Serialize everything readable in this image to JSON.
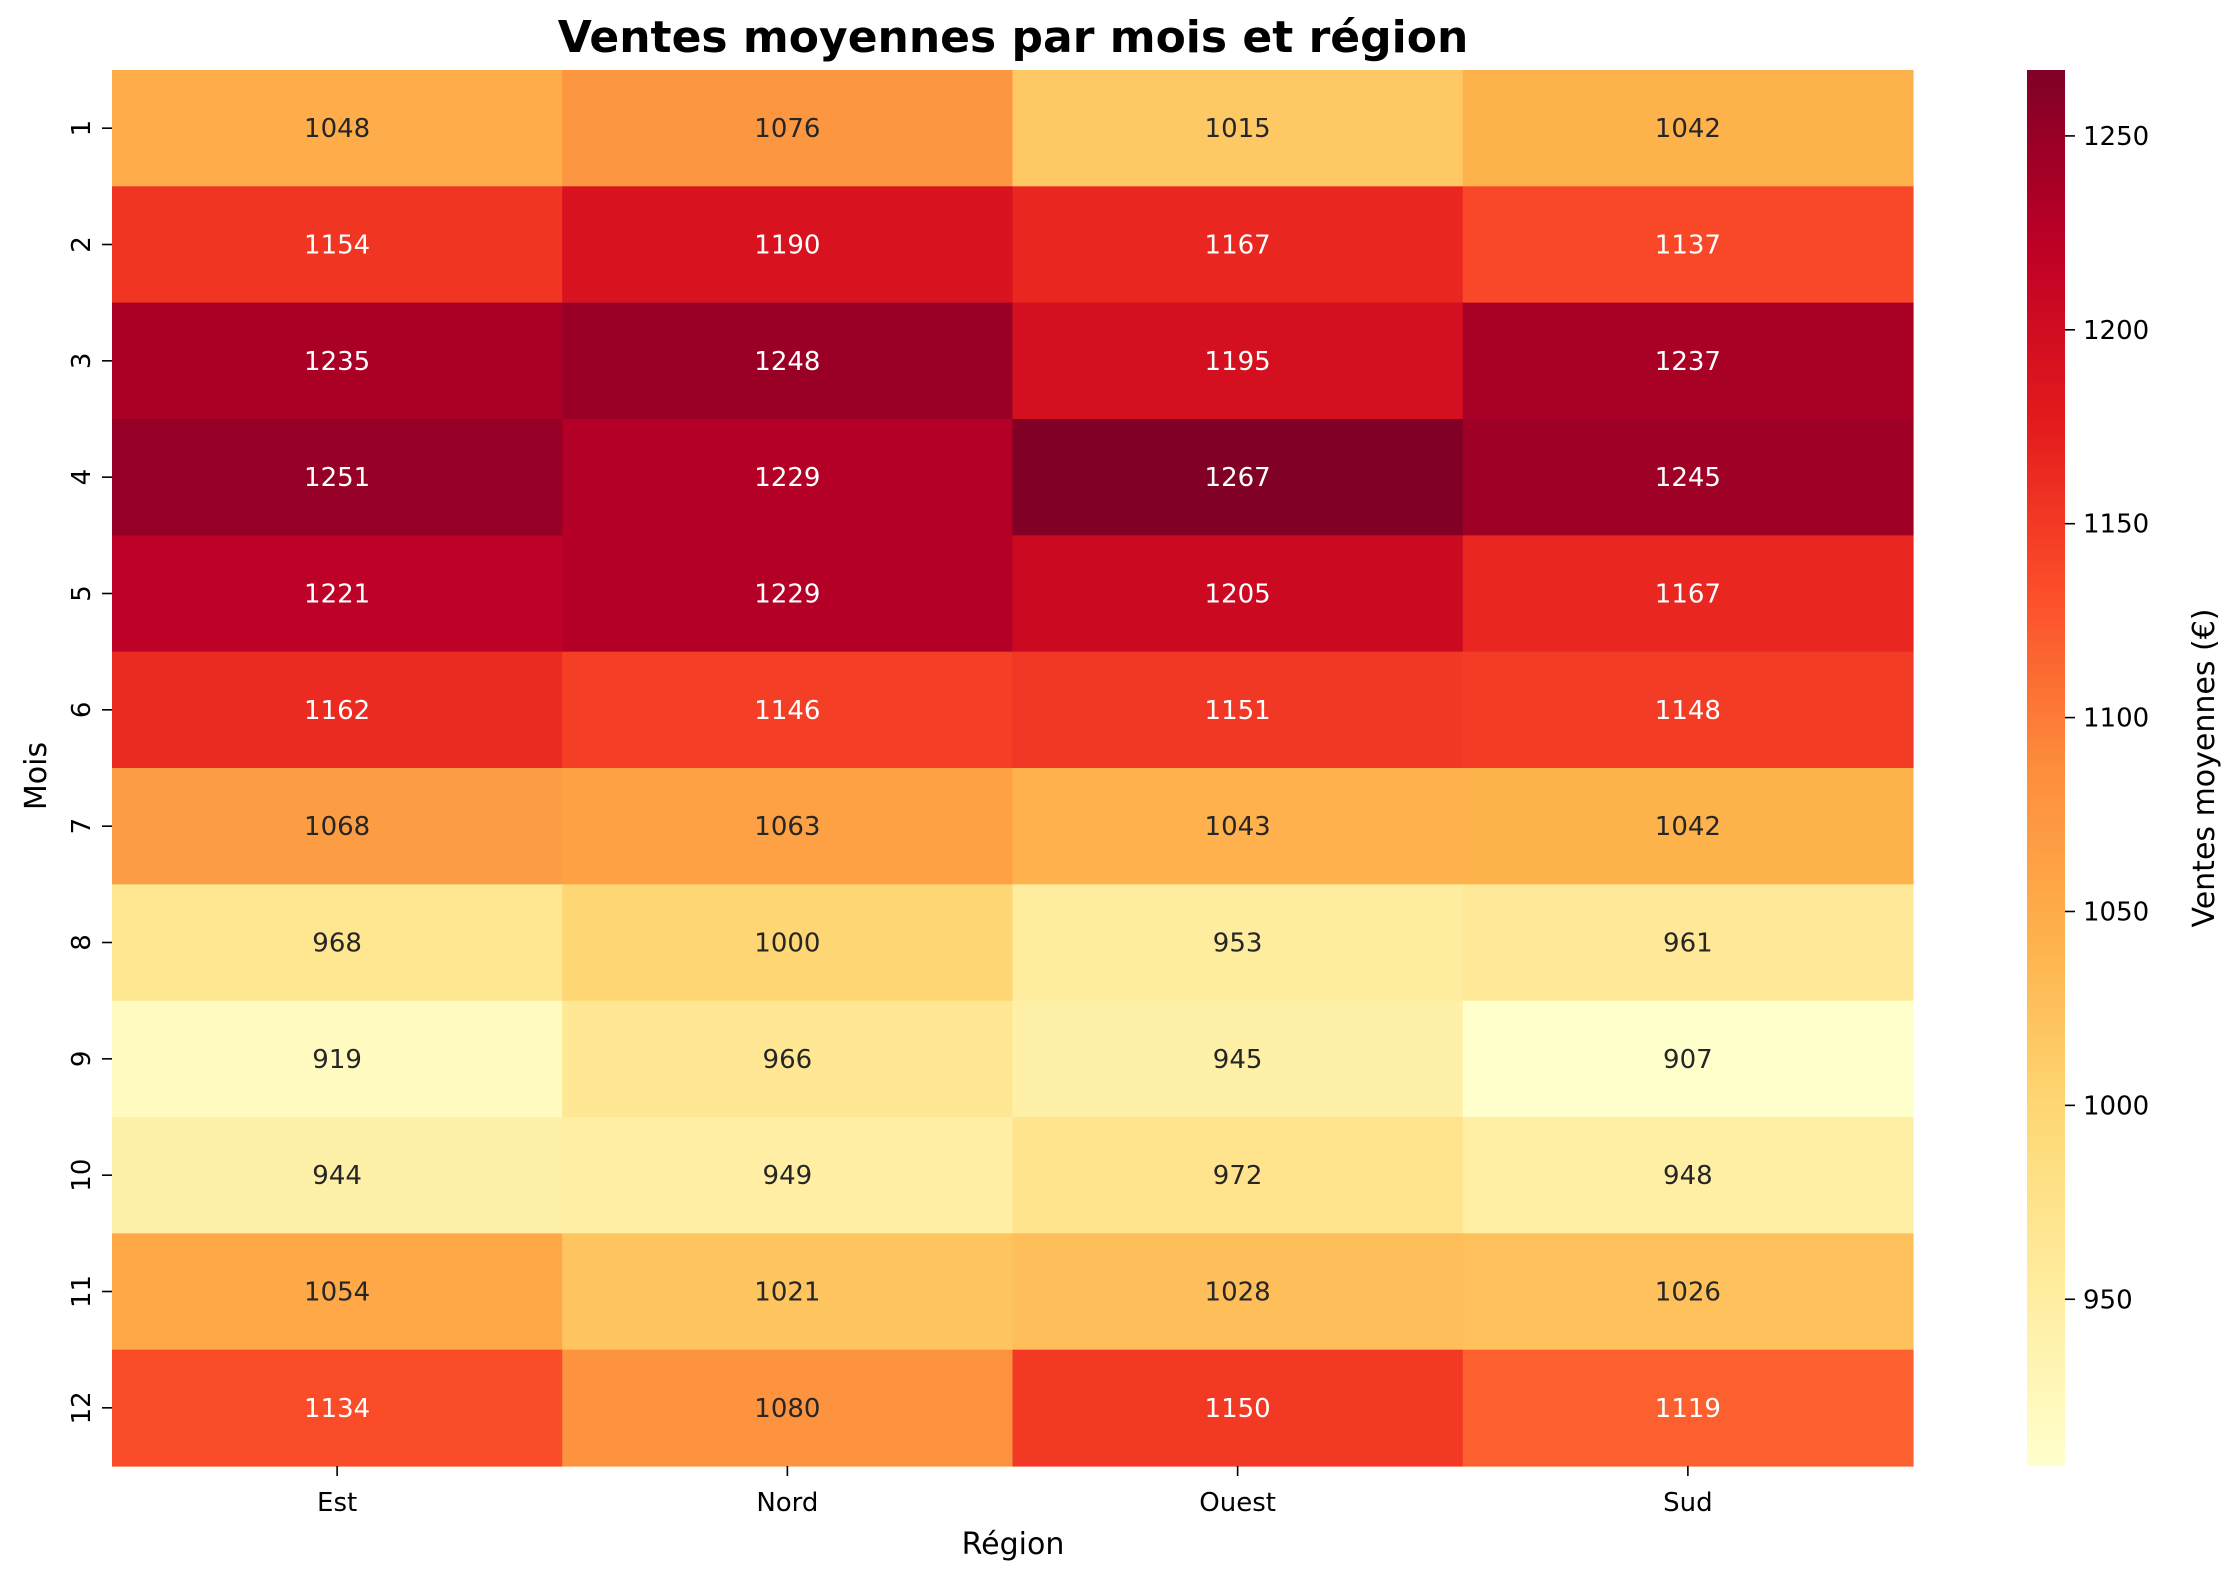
{
  "chart_data": {
    "type": "heatmap",
    "title": "Ventes moyennes par mois et région",
    "xlabel": "Région",
    "ylabel": "Mois",
    "colorbar_label": "Ventes moyennes (€)",
    "colormap": "YlOrRd",
    "colormap_stops": [
      "#ffffcc",
      "#ffeda0",
      "#fed976",
      "#feb24c",
      "#fd8d3c",
      "#fc4e2a",
      "#e31a1c",
      "#bd0026",
      "#800026"
    ],
    "x_categories": [
      "Est",
      "Nord",
      "Ouest",
      "Sud"
    ],
    "y_categories": [
      "1",
      "2",
      "3",
      "4",
      "5",
      "6",
      "7",
      "8",
      "9",
      "10",
      "11",
      "12"
    ],
    "values": [
      [
        1048,
        1076,
        1015,
        1042
      ],
      [
        1154,
        1190,
        1167,
        1137
      ],
      [
        1235,
        1248,
        1195,
        1237
      ],
      [
        1251,
        1229,
        1267,
        1245
      ],
      [
        1221,
        1229,
        1205,
        1167
      ],
      [
        1162,
        1146,
        1151,
        1148
      ],
      [
        1068,
        1063,
        1043,
        1042
      ],
      [
        968,
        1000,
        953,
        961
      ],
      [
        919,
        966,
        945,
        907
      ],
      [
        944,
        949,
        972,
        948
      ],
      [
        1054,
        1021,
        1028,
        1026
      ],
      [
        1134,
        1080,
        1150,
        1119
      ]
    ],
    "vmin": 907,
    "vmax": 1267,
    "colorbar_ticks": [
      950,
      1000,
      1050,
      1100,
      1150,
      1200,
      1250
    ]
  }
}
